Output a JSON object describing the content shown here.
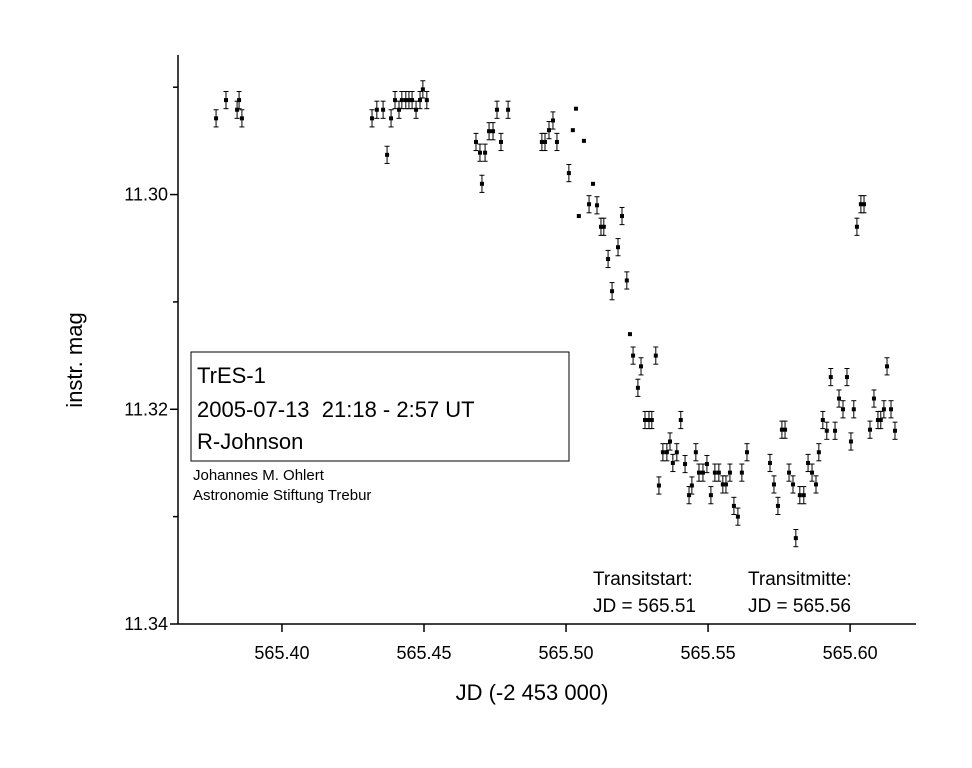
{
  "chart_data": {
    "type": "scatter",
    "xlabel": "JD (-2 453 000)",
    "ylabel": "instr. mag",
    "xlim": [
      565.3634,
      565.6232
    ],
    "ylim": [
      11.287,
      11.34
    ],
    "xticks": [
      {
        "value": 565.4,
        "label": "565.40"
      },
      565.45,
      {
        "value": 565.5,
        "label": "565.50"
      },
      565.55,
      {
        "value": 565.6,
        "label": "565.60"
      }
    ],
    "yticks": [
      {
        "value": 11.3,
        "label": "11.30"
      },
      11.32,
      11.34
    ],
    "y_minor_ticks": [
      11.29,
      11.31,
      11.33
    ],
    "y_inverted": true,
    "color": "#000000",
    "x": [
      565.3768,
      565.3803,
      565.3842,
      565.3849,
      565.3859,
      565.4317,
      565.4334,
      565.4356,
      565.437,
      565.4384,
      565.4398,
      565.4412,
      565.4422,
      565.4436,
      565.4447,
      565.4458,
      565.4472,
      565.4486,
      565.4496,
      565.451,
      565.4683,
      565.4697,
      565.4704,
      565.4715,
      565.4729,
      565.4743,
      565.4757,
      565.4771,
      565.4796,
      565.4915,
      565.4926,
      565.494,
      565.4954,
      565.4968,
      565.501,
      565.5024,
      565.5035,
      565.5045,
      565.5063,
      565.5081,
      565.5095,
      565.5109,
      565.5123,
      565.5133,
      565.5148,
      565.5162,
      565.5183,
      565.5197,
      565.5214,
      565.5225,
      565.5236,
      565.5253,
      565.5264,
      565.5278,
      565.5292,
      565.5302,
      565.5316,
      565.5327,
      565.5341,
      565.5355,
      565.5366,
      565.5376,
      565.539,
      565.5404,
      565.5419,
      565.5433,
      565.5443,
      565.5457,
      565.5468,
      565.5482,
      565.5496,
      565.551,
      565.5524,
      565.5538,
      565.5552,
      565.5563,
      565.5577,
      565.5591,
      565.5605,
      565.5619,
      565.5637,
      565.5718,
      565.5732,
      565.5746,
      565.576,
      565.5771,
      565.5785,
      565.5799,
      565.5809,
      565.5823,
      565.5837,
      565.5852,
      565.5866,
      565.588,
      565.589,
      565.5904,
      565.5918,
      565.5932,
      565.5947,
      565.5961,
      565.5975,
      565.5989,
      565.6003,
      565.6013,
      565.6024,
      565.6038,
      565.6049,
      565.607,
      565.6084,
      565.6098,
      565.6108,
      565.6119,
      565.613,
      565.6144,
      565.6158
    ],
    "values": [
      11.2929,
      11.2912,
      11.2921,
      11.2912,
      11.2929,
      11.2929,
      11.2921,
      11.2921,
      11.2963,
      11.2929,
      11.2912,
      11.2921,
      11.2912,
      11.2912,
      11.2912,
      11.2912,
      11.2921,
      11.2912,
      11.2902,
      11.2912,
      11.2951,
      11.2961,
      11.299,
      11.2961,
      11.2941,
      11.2941,
      11.2921,
      11.2951,
      11.2921,
      11.2951,
      11.2951,
      11.294,
      11.2931,
      11.2951,
      11.298,
      11.294,
      11.292,
      11.302,
      11.295,
      11.3009,
      11.299,
      11.301,
      11.303,
      11.303,
      11.306,
      11.309,
      11.3049,
      11.302,
      11.308,
      11.313,
      11.315,
      11.318,
      11.316,
      11.321,
      11.321,
      11.321,
      11.315,
      11.3271,
      11.324,
      11.324,
      11.323,
      11.325,
      11.324,
      11.321,
      11.3251,
      11.328,
      11.3271,
      11.324,
      11.3259,
      11.3259,
      11.3251,
      11.328,
      11.3259,
      11.3259,
      11.327,
      11.327,
      11.3259,
      11.329,
      11.33,
      11.3259,
      11.324,
      11.325,
      11.327,
      11.329,
      11.3219,
      11.3219,
      11.3259,
      11.327,
      11.332,
      11.328,
      11.328,
      11.325,
      11.3259,
      11.327,
      11.324,
      11.321,
      11.322,
      11.317,
      11.322,
      11.319,
      11.32,
      11.317,
      11.323,
      11.32,
      11.303,
      11.3009,
      11.3009,
      11.3219,
      11.319,
      11.321,
      11.321,
      11.32,
      11.316,
      11.32,
      11.322
    ],
    "errors": [
      0.0008,
      0.0008,
      0.0008,
      0.0008,
      0.0008,
      0.0008,
      0.0008,
      0.0008,
      0.0008,
      0.0008,
      0.0008,
      0.0008,
      0.0008,
      0.0008,
      0.0008,
      0.0008,
      0.0008,
      0.0008,
      0.0008,
      0.0008,
      0.0008,
      0.0008,
      0.0008,
      0.0008,
      0.0008,
      0.0008,
      0.0008,
      0.0008,
      0.0008,
      0.0008,
      0.0008,
      0.0008,
      0.0008,
      0.0008,
      0.0008,
      null,
      null,
      null,
      null,
      0.0008,
      null,
      0.0008,
      0.0008,
      0.0008,
      0.0008,
      0.0008,
      0.0008,
      0.0008,
      0.0008,
      null,
      0.0008,
      0.0008,
      0.0008,
      0.0008,
      0.0008,
      0.0008,
      0.0008,
      0.0008,
      0.0008,
      0.0008,
      0.0008,
      0.0008,
      0.0008,
      0.0008,
      0.0008,
      0.0008,
      0.0008,
      0.0008,
      0.0008,
      0.0008,
      0.0008,
      0.0008,
      0.0008,
      0.0008,
      0.0008,
      0.0008,
      0.0008,
      0.0008,
      0.0008,
      0.0008,
      0.0008,
      0.0008,
      0.0008,
      0.0008,
      0.0008,
      0.0008,
      0.0008,
      0.0008,
      0.0008,
      0.0008,
      0.0008,
      0.0008,
      0.0008,
      0.0008,
      0.0008,
      0.0008,
      0.0008,
      0.0008,
      0.0008,
      0.0008,
      0.0008,
      0.0008,
      0.0008,
      0.0008,
      0.0008,
      0.0008,
      0.0008,
      0.0008,
      0.0008,
      0.0008,
      0.0008,
      0.0008,
      0.0008,
      0.0008,
      0.0008
    ],
    "annotations": {
      "box": [
        "TrES-1",
        "2005-07-13  21:18 - 2:57 UT",
        "R-Johnson"
      ],
      "credit": [
        "Johannes M. Ohlert",
        "Astronomie Stiftung Trebur"
      ],
      "transit_start": [
        "Transitstart:",
        "JD = 565.51"
      ],
      "transit_mid": [
        "Transitmitte:",
        "JD = 565.56"
      ]
    }
  }
}
